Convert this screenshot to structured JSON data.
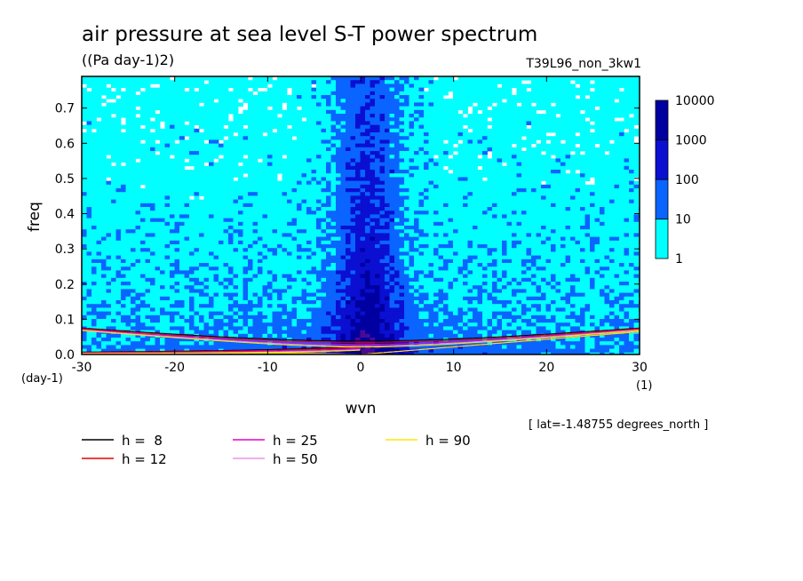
{
  "title": "air pressure at sea level S-T power spectrum",
  "units": "((Pa day-1)2)",
  "experiment": "T39L96_non_3kw1",
  "footnote": "[ lat=-1.48755 degrees_north ]",
  "chart_data": {
    "type": "heatmap",
    "xlabel": "wvn",
    "ylabel": "freq",
    "x_unit": "(1)",
    "y_unit": "(day-1)",
    "xlim": [
      -30,
      30
    ],
    "ylim": [
      0,
      0.79
    ],
    "xticks": [
      "-30",
      "-20",
      "-10",
      "0",
      "10",
      "20",
      "30"
    ],
    "yticks": [
      "0.0",
      "0.1",
      "0.2",
      "0.3",
      "0.4",
      "0.5",
      "0.6",
      "0.7"
    ],
    "colorbar": {
      "levels": [
        "1",
        "10",
        "100",
        "1000",
        "10000"
      ],
      "colors": [
        "#00ffff",
        "#0a64ff",
        "#0a0fd2",
        "#0000a0",
        "#4b0a96"
      ]
    },
    "dispersion_curves": [
      {
        "label": "h =  8",
        "h": 8,
        "color": "#000000"
      },
      {
        "label": "h = 12",
        "h": 12,
        "color": "#e60000"
      },
      {
        "label": "h = 25",
        "h": 25,
        "color": "#e600c8"
      },
      {
        "label": "h = 50",
        "h": 50,
        "color": "#e696e6"
      },
      {
        "label": "h = 90",
        "h": 90,
        "color": "#ffe600"
      }
    ]
  }
}
